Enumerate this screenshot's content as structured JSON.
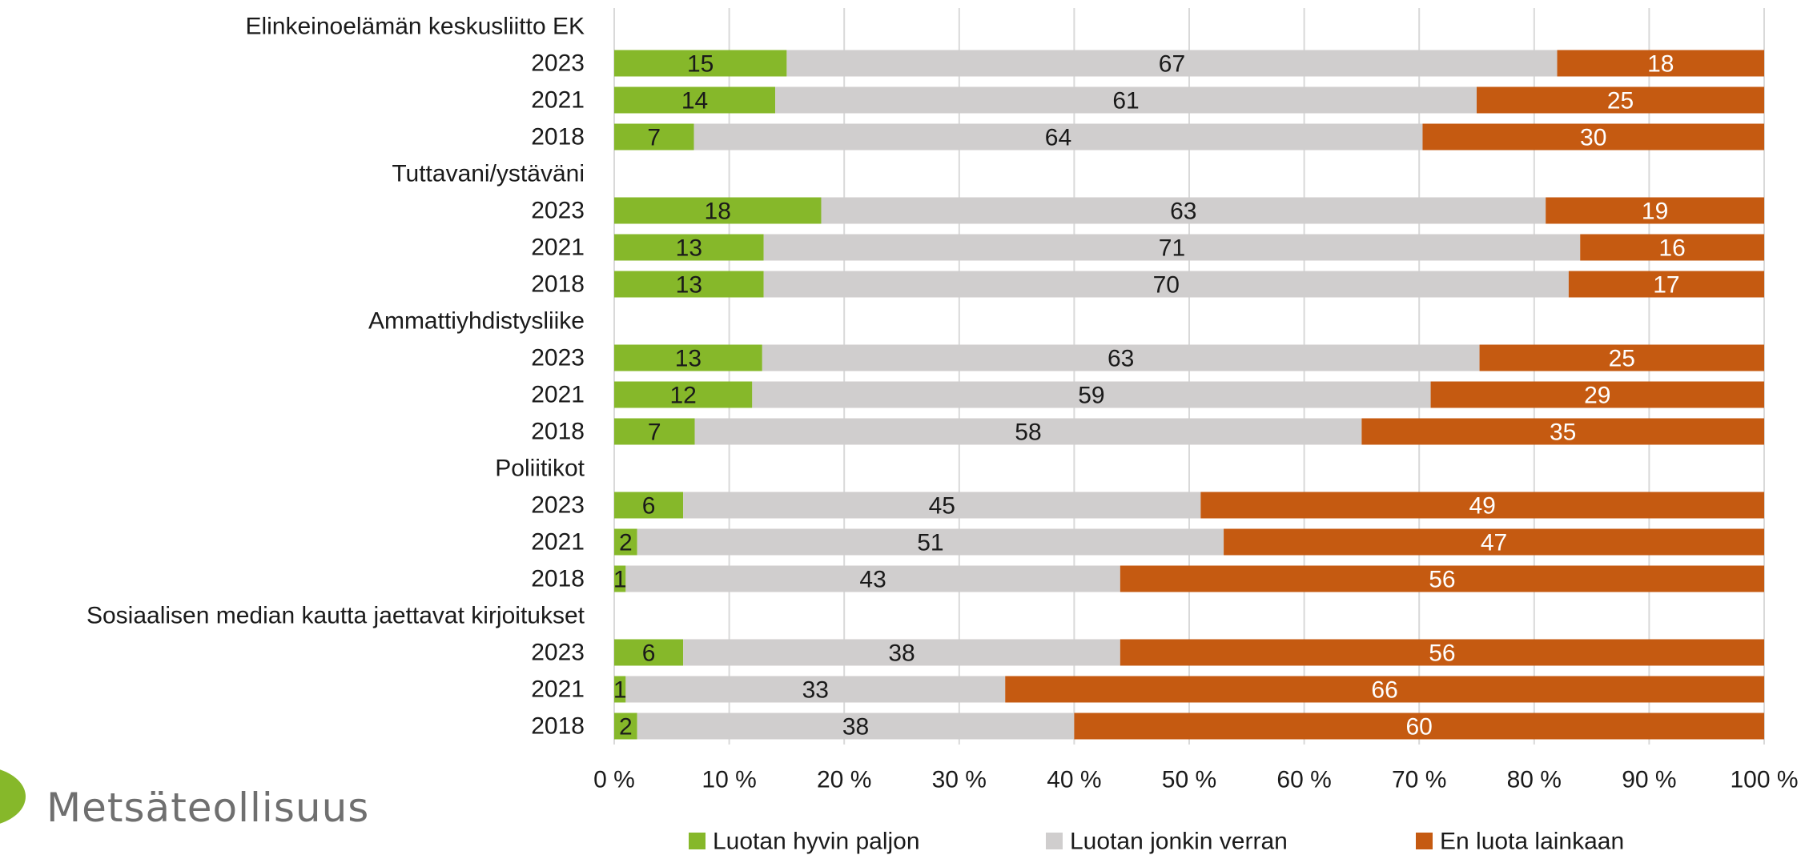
{
  "brand": {
    "name": "Metsäteollisuus",
    "color": "#86b82a"
  },
  "chart_data": {
    "type": "bar",
    "orientation": "horizontal",
    "stacked": true,
    "percent_stacked": true,
    "groups": [
      {
        "name": "Elinkeinoelämän keskusliitto EK",
        "rows": [
          {
            "year": "2023",
            "values": [
              15,
              67,
              18
            ]
          },
          {
            "year": "2021",
            "values": [
              14,
              61,
              25
            ]
          },
          {
            "year": "2018",
            "values": [
              7,
              64,
              30
            ]
          }
        ]
      },
      {
        "name": "Tuttavani/ystäväni",
        "rows": [
          {
            "year": "2023",
            "values": [
              18,
              63,
              19
            ]
          },
          {
            "year": "2021",
            "values": [
              13,
              71,
              16
            ]
          },
          {
            "year": "2018",
            "values": [
              13,
              70,
              17
            ]
          }
        ]
      },
      {
        "name": "Ammattiyhdistysliike",
        "rows": [
          {
            "year": "2023",
            "values": [
              13,
              63,
              25
            ]
          },
          {
            "year": "2021",
            "values": [
              12,
              59,
              29
            ]
          },
          {
            "year": "2018",
            "values": [
              7,
              58,
              35
            ]
          }
        ]
      },
      {
        "name": "Poliitikot",
        "rows": [
          {
            "year": "2023",
            "values": [
              6,
              45,
              49
            ]
          },
          {
            "year": "2021",
            "values": [
              2,
              51,
              47
            ]
          },
          {
            "year": "2018",
            "values": [
              1,
              43,
              56
            ]
          }
        ]
      },
      {
        "name": "Sosiaalisen median kautta jaettavat kirjoitukset",
        "rows": [
          {
            "year": "2023",
            "values": [
              6,
              38,
              56
            ]
          },
          {
            "year": "2021",
            "values": [
              1,
              33,
              66
            ]
          },
          {
            "year": "2018",
            "values": [
              2,
              38,
              60
            ]
          }
        ]
      }
    ],
    "series": [
      {
        "name": "Luotan hyvin paljon",
        "color": "#86b82a",
        "label_color": "#1a1a1a"
      },
      {
        "name": "Luotan jonkin verran",
        "color": "#d0cece",
        "label_color": "#1a1a1a"
      },
      {
        "name": "En luota lainkaan",
        "color": "#c55a11",
        "label_color": "#ffffff"
      }
    ],
    "x_ticks": [
      "0 %",
      "10 %",
      "20 %",
      "30 %",
      "40 %",
      "50 %",
      "60 %",
      "70 %",
      "80 %",
      "90 %",
      "100 %"
    ],
    "xlim": [
      0,
      100
    ],
    "grid": true,
    "legend_position": "bottom"
  }
}
